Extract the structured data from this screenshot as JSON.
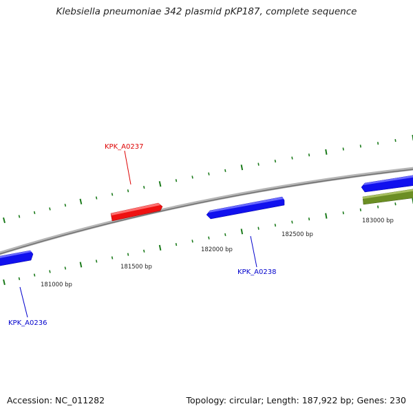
{
  "title": "Klebsiella pneumoniae 342 plasmid pKP187, complete sequence",
  "accession": "Accession: NC_011282",
  "summary": "Topology: circular; Length: 187,922 bp; Genes: 230",
  "colors": {
    "backbone": "#8c8c8c",
    "tick_mark": "#1a7a1a",
    "gene_forward": "#ee1111",
    "gene_reverse": "#1111ee",
    "gene_other": "#6b8e23",
    "label_forward": "#dd0000",
    "label_reverse": "#0000cc"
  },
  "scale_labels": [
    "181000 bp",
    "181500 bp",
    "182000 bp",
    "182500 bp",
    "183000 bp"
  ],
  "genes": [
    {
      "label": "KPK_A0236",
      "strand": "reverse"
    },
    {
      "label": "KPK_A0237",
      "strand": "forward"
    },
    {
      "label": "KPK_A0238",
      "strand": "reverse"
    }
  ]
}
